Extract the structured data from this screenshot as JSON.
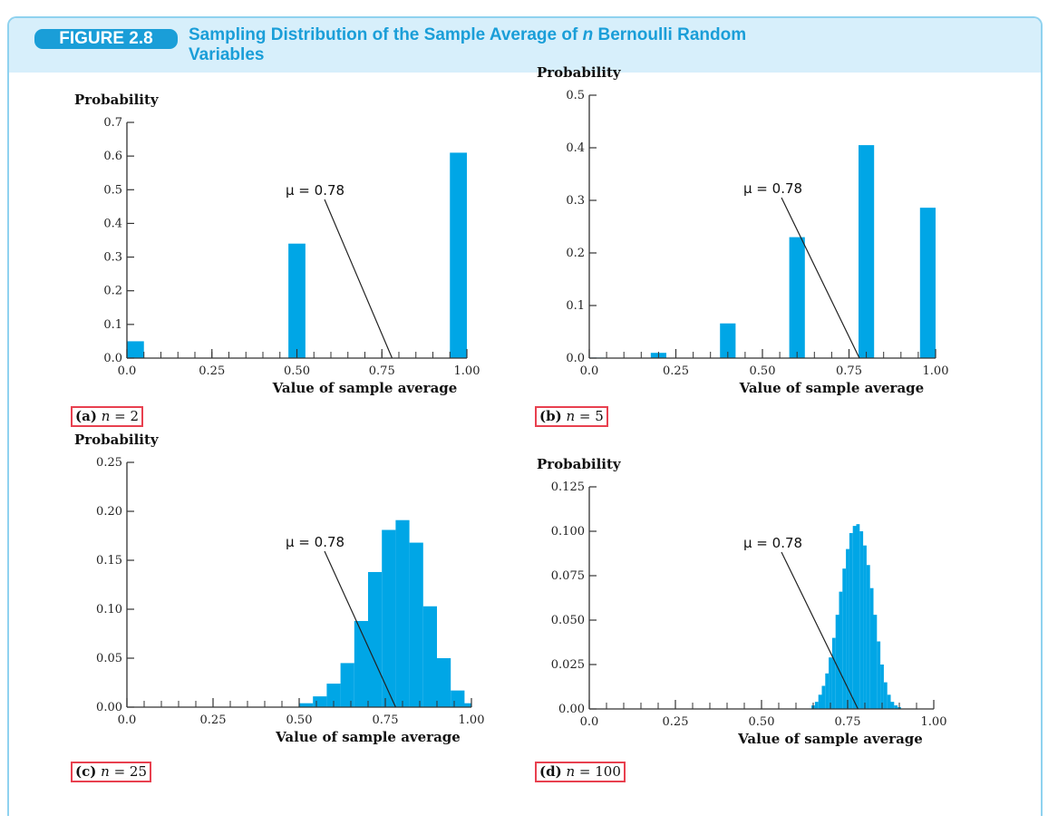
{
  "figure": {
    "label": "FIGURE 2.8",
    "title_before": "Sampling Distribution of the Sample Average of ",
    "title_italic": "n",
    "title_after": " Bernoulli Random Variables"
  },
  "colors": {
    "bar": "#00a6e6",
    "accent": "#1a9ed8",
    "header_bg": "#d7effb",
    "caption_box": "#e8404f"
  },
  "chart_data": [
    {
      "type": "bar",
      "panel": "(a)",
      "caption_prefix": "(a)",
      "caption_var": "n",
      "caption_rest": "= 2",
      "ylabel": "Probability",
      "xlabel": "Value of sample average",
      "xlim": [
        0,
        1
      ],
      "ylim": [
        0,
        0.7
      ],
      "xticks": [
        "0.0",
        "0.25",
        "0.50",
        "0.75",
        "1.00"
      ],
      "yticks": [
        "0.0",
        "0.1",
        "0.2",
        "0.3",
        "0.4",
        "0.5",
        "0.6",
        "0.7"
      ],
      "bin_width": 0.05,
      "x": [
        0.0,
        0.5,
        1.0
      ],
      "values": [
        0.05,
        0.34,
        0.61
      ],
      "annotation": {
        "text": "μ = 0.78",
        "x": 0.78
      }
    },
    {
      "type": "bar",
      "panel": "(b)",
      "caption_prefix": "(b)",
      "caption_var": "n",
      "caption_rest": "= 5",
      "ylabel": "Probability",
      "xlabel": "Value of sample average",
      "xlim": [
        0,
        1
      ],
      "ylim": [
        0,
        0.5
      ],
      "xticks": [
        "0.0",
        "0.25",
        "0.50",
        "0.75",
        "1.00"
      ],
      "yticks": [
        "0.0",
        "0.1",
        "0.2",
        "0.3",
        "0.4",
        "0.5"
      ],
      "bin_width": 0.045,
      "x": [
        0.0,
        0.2,
        0.4,
        0.6,
        0.8,
        1.0
      ],
      "values": [
        0.001,
        0.01,
        0.066,
        0.23,
        0.405,
        0.286
      ],
      "annotation": {
        "text": "μ = 0.78",
        "x": 0.78
      }
    },
    {
      "type": "bar",
      "panel": "(c)",
      "caption_prefix": "(c)",
      "caption_var": "n",
      "caption_rest": "= 25",
      "ylabel": "Probability",
      "xlabel": "Value of sample average",
      "xlim": [
        0,
        1
      ],
      "ylim": [
        0,
        0.25
      ],
      "xticks": [
        "0.0",
        "0.25",
        "0.50",
        "0.75",
        "1.00"
      ],
      "yticks": [
        "0.00",
        "0.05",
        "0.10",
        "0.15",
        "0.20",
        "0.25"
      ],
      "bin_width": 0.04,
      "x": [
        0.52,
        0.56,
        0.6,
        0.64,
        0.68,
        0.72,
        0.76,
        0.8,
        0.84,
        0.88,
        0.92,
        0.96,
        1.0
      ],
      "values": [
        0.004,
        0.011,
        0.024,
        0.045,
        0.088,
        0.138,
        0.181,
        0.191,
        0.168,
        0.103,
        0.05,
        0.017,
        0.004
      ],
      "annotation": {
        "text": "μ = 0.78",
        "x": 0.78
      }
    },
    {
      "type": "bar",
      "panel": "(d)",
      "caption_prefix": "(d)",
      "caption_var": "n",
      "caption_rest": "= 100",
      "ylabel": "Probability",
      "xlabel": "Value of sample average",
      "xlim": [
        0,
        1
      ],
      "ylim": [
        0,
        0.125
      ],
      "xticks": [
        "0.0",
        "0.25",
        "0.50",
        "0.75",
        "1.00"
      ],
      "yticks": [
        "0.00",
        "0.025",
        "0.050",
        "0.075",
        "0.100",
        "0.125"
      ],
      "bin_width": 0.01,
      "x": [
        0.65,
        0.66,
        0.67,
        0.68,
        0.69,
        0.7,
        0.71,
        0.72,
        0.73,
        0.74,
        0.75,
        0.76,
        0.77,
        0.78,
        0.79,
        0.8,
        0.81,
        0.82,
        0.83,
        0.84,
        0.85,
        0.86,
        0.87,
        0.88,
        0.89,
        0.9
      ],
      "values": [
        0.002,
        0.004,
        0.008,
        0.013,
        0.02,
        0.029,
        0.04,
        0.053,
        0.066,
        0.079,
        0.09,
        0.099,
        0.103,
        0.104,
        0.1,
        0.092,
        0.081,
        0.068,
        0.053,
        0.038,
        0.025,
        0.015,
        0.008,
        0.004,
        0.002,
        0.001
      ],
      "annotation": {
        "text": "μ = 0.78",
        "x": 0.78
      }
    }
  ]
}
